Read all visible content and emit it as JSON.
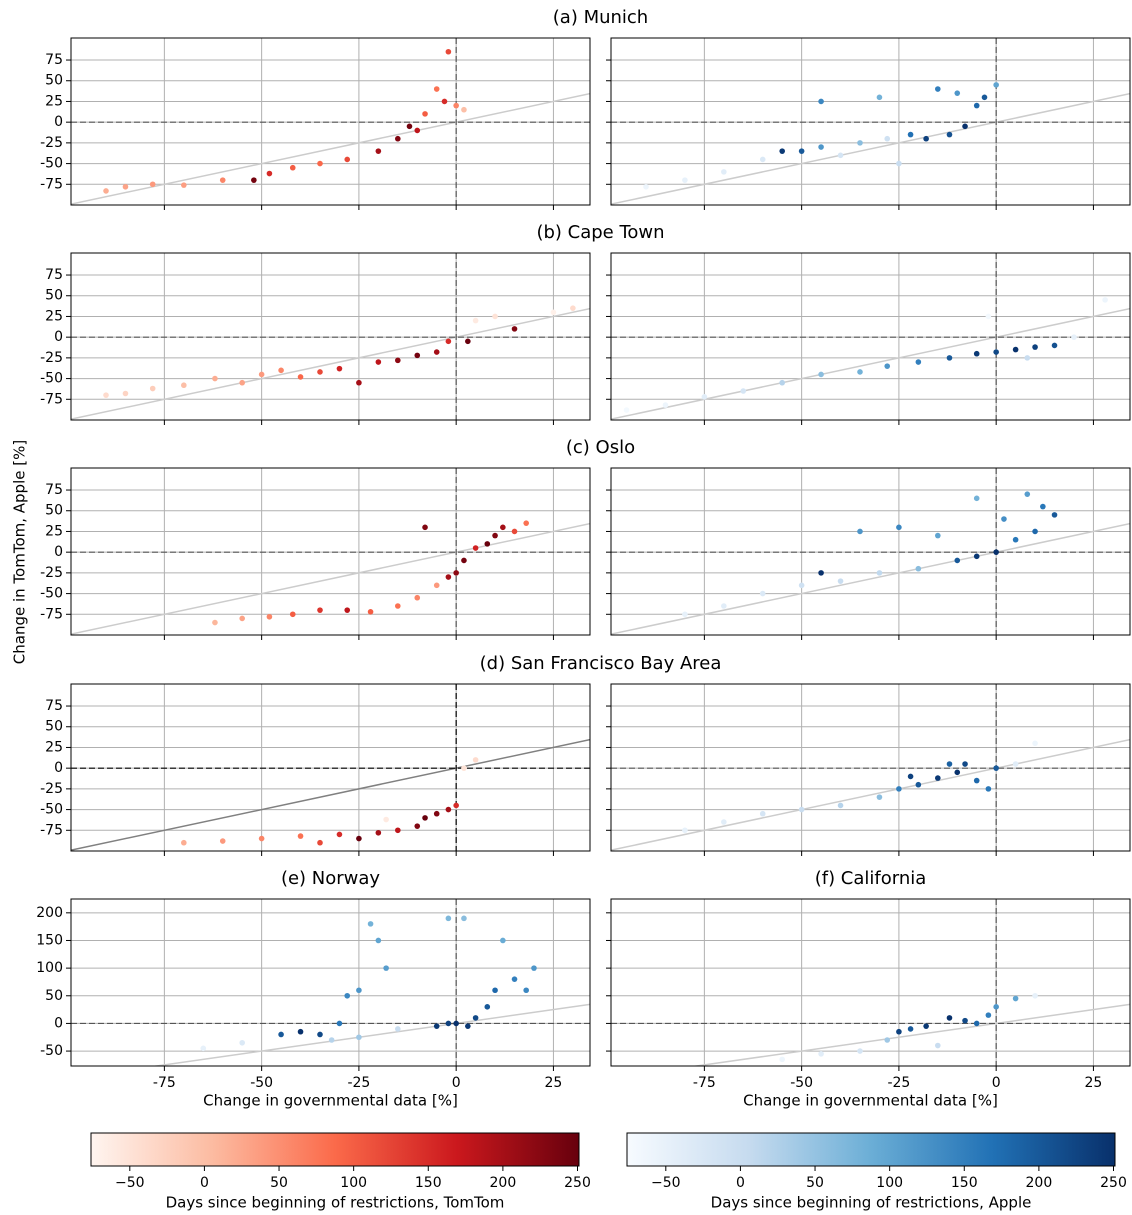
{
  "figure": {
    "ylabel": "Change in TomTom, Apple [%]"
  },
  "colorbars": [
    {
      "label": "Days since beginning of restrictions, TomTom",
      "cmap": [
        "#fff5f0",
        "#fcbba1",
        "#fb6a4a",
        "#cb181d",
        "#67000d"
      ],
      "clim": [
        -76,
        251
      ],
      "ticks": [
        {
          "value": -50,
          "label": "−50"
        },
        0,
        50,
        100,
        150,
        200,
        250
      ]
    },
    {
      "label": "Days since beginning of restrictions, Apple",
      "cmap": [
        "#f7fbff",
        "#c6dbef",
        "#6baed6",
        "#2171b5",
        "#08306b"
      ],
      "clim": [
        -76,
        251
      ],
      "ticks": [
        {
          "value": -50,
          "label": "−50"
        },
        0,
        50,
        100,
        150,
        200,
        250
      ]
    }
  ],
  "chart_data": [
    {
      "type": "scatter",
      "title": "(a) Munich",
      "cmap": [
        "#fff5f0",
        "#fcbba1",
        "#fb6a4a",
        "#cb181d",
        "#67000d"
      ],
      "clim": [
        -76,
        251
      ],
      "ref_color": "#cccccc",
      "xlim": [
        -99,
        34.4
      ],
      "ylim": [
        -100,
        101.6
      ],
      "xticks": [
        -75,
        -50,
        -25,
        0,
        25
      ],
      "yticks": [
        -75,
        -50,
        -25,
        0,
        25,
        50,
        75
      ],
      "grid": true,
      "xticklabels": false,
      "yticklabels": true,
      "x": [
        -90,
        -85,
        -78,
        -70,
        -60,
        -52,
        -48,
        -42,
        -35,
        -28,
        -20,
        -15,
        -10,
        -8,
        -5,
        -3,
        -2,
        0,
        2,
        -12
      ],
      "y": [
        -83,
        -78,
        -75,
        -76,
        -70,
        -70,
        -62,
        -55,
        -50,
        -45,
        -35,
        -20,
        -10,
        10,
        40,
        25,
        85,
        20,
        15,
        -5
      ],
      "c": [
        20,
        30,
        40,
        35,
        60,
        240,
        150,
        100,
        90,
        120,
        200,
        230,
        180,
        100,
        80,
        150,
        120,
        60,
        0,
        240
      ]
    },
    {
      "type": "scatter",
      "cmap": [
        "#f7fbff",
        "#c6dbef",
        "#6baed6",
        "#2171b5",
        "#08306b"
      ],
      "clim": [
        -76,
        251
      ],
      "ref_color": "#cccccc",
      "xlim": [
        -99,
        34.4
      ],
      "ylim": [
        -100,
        101.6
      ],
      "xticks": [
        -75,
        -50,
        -25,
        0,
        25
      ],
      "yticks": [
        -75,
        -50,
        -25,
        0,
        25,
        50,
        75
      ],
      "grid": true,
      "xticklabels": false,
      "yticklabels": false,
      "x": [
        -90,
        -80,
        -70,
        -60,
        -50,
        -45,
        -40,
        -35,
        -28,
        -22,
        -18,
        -12,
        -8,
        -5,
        -3,
        0,
        -55,
        -45,
        -30,
        -15,
        -10,
        -25
      ],
      "y": [
        -78,
        -70,
        -60,
        -45,
        -35,
        -30,
        -40,
        -25,
        -20,
        -15,
        -20,
        -15,
        -5,
        20,
        30,
        45,
        -35,
        25,
        30,
        40,
        35,
        -50
      ],
      "c": [
        -60,
        -50,
        -40,
        -30,
        200,
        120,
        -20,
        60,
        -10,
        170,
        230,
        210,
        250,
        180,
        200,
        100,
        240,
        140,
        80,
        150,
        120,
        0
      ]
    },
    {
      "type": "scatter",
      "title": "(b) Cape Town",
      "cmap": [
        "#fff5f0",
        "#fcbba1",
        "#fb6a4a",
        "#cb181d",
        "#67000d"
      ],
      "clim": [
        -76,
        251
      ],
      "ref_color": "#cccccc",
      "xlim": [
        -99,
        34.4
      ],
      "ylim": [
        -100,
        101.6
      ],
      "xticks": [
        -75,
        -50,
        -25,
        0,
        25
      ],
      "yticks": [
        -75,
        -50,
        -25,
        0,
        25,
        50,
        75
      ],
      "grid": true,
      "xticklabels": false,
      "yticklabels": true,
      "x": [
        -90,
        -85,
        -78,
        -70,
        -62,
        -55,
        -50,
        -45,
        -40,
        -35,
        -30,
        -25,
        -20,
        -15,
        -10,
        -5,
        -2,
        5,
        10,
        15,
        25,
        30,
        3
      ],
      "y": [
        -70,
        -68,
        -62,
        -58,
        -50,
        -55,
        -45,
        -40,
        -48,
        -42,
        -38,
        -55,
        -30,
        -28,
        -22,
        -18,
        -5,
        20,
        25,
        10,
        30,
        35,
        -5
      ],
      "c": [
        -40,
        -30,
        -20,
        0,
        20,
        30,
        40,
        60,
        90,
        120,
        160,
        200,
        180,
        220,
        240,
        200,
        150,
        -60,
        -50,
        230,
        -70,
        -40,
        250
      ]
    },
    {
      "type": "scatter",
      "cmap": [
        "#f7fbff",
        "#c6dbef",
        "#6baed6",
        "#2171b5",
        "#08306b"
      ],
      "clim": [
        -76,
        251
      ],
      "ref_color": "#cccccc",
      "xlim": [
        -99,
        34.4
      ],
      "ylim": [
        -100,
        101.6
      ],
      "xticks": [
        -75,
        -50,
        -25,
        0,
        25
      ],
      "yticks": [
        -75,
        -50,
        -25,
        0,
        25,
        50,
        75
      ],
      "grid": true,
      "xticklabels": false,
      "yticklabels": false,
      "x": [
        -95,
        -85,
        -75,
        -65,
        -55,
        -45,
        -35,
        -28,
        -20,
        -12,
        -5,
        0,
        5,
        10,
        15,
        20,
        28,
        -2,
        8
      ],
      "y": [
        -88,
        -82,
        -72,
        -65,
        -55,
        -45,
        -42,
        -35,
        -30,
        -25,
        -20,
        -18,
        -15,
        -12,
        -10,
        0,
        45,
        25,
        -25
      ],
      "c": [
        -70,
        -60,
        -40,
        -20,
        20,
        60,
        80,
        120,
        150,
        200,
        240,
        220,
        250,
        230,
        210,
        -50,
        -60,
        -70,
        0
      ]
    },
    {
      "type": "scatter",
      "title": "(c) Oslo",
      "cmap": [
        "#fff5f0",
        "#fcbba1",
        "#fb6a4a",
        "#cb181d",
        "#67000d"
      ],
      "clim": [
        -76,
        251
      ],
      "ref_color": "#cccccc",
      "xlim": [
        -99,
        34.4
      ],
      "ylim": [
        -100,
        101.6
      ],
      "xticks": [
        -75,
        -50,
        -25,
        0,
        25
      ],
      "yticks": [
        -75,
        -50,
        -25,
        0,
        25,
        50,
        75
      ],
      "grid": true,
      "xticklabels": false,
      "yticklabels": true,
      "x": [
        -62,
        -55,
        -48,
        -42,
        -35,
        -28,
        -22,
        -15,
        -10,
        -5,
        -2,
        0,
        2,
        5,
        8,
        10,
        12,
        15,
        18,
        -8
      ],
      "y": [
        -85,
        -80,
        -78,
        -75,
        -70,
        -70,
        -72,
        -65,
        -55,
        -40,
        -30,
        -25,
        -10,
        5,
        10,
        20,
        30,
        25,
        35,
        30
      ],
      "c": [
        10,
        30,
        60,
        100,
        140,
        180,
        100,
        80,
        60,
        40,
        200,
        220,
        240,
        160,
        250,
        230,
        200,
        120,
        80,
        230
      ]
    },
    {
      "type": "scatter",
      "cmap": [
        "#f7fbff",
        "#c6dbef",
        "#6baed6",
        "#2171b5",
        "#08306b"
      ],
      "clim": [
        -76,
        251
      ],
      "ref_color": "#cccccc",
      "xlim": [
        -99,
        34.4
      ],
      "ylim": [
        -100,
        101.6
      ],
      "xticks": [
        -75,
        -50,
        -25,
        0,
        25
      ],
      "yticks": [
        -75,
        -50,
        -25,
        0,
        25,
        50,
        75
      ],
      "grid": true,
      "xticklabels": false,
      "yticklabels": false,
      "x": [
        -80,
        -70,
        -60,
        -50,
        -40,
        -30,
        -20,
        -10,
        -5,
        0,
        5,
        10,
        15,
        -45,
        -35,
        -25,
        -15,
        -5,
        2,
        8,
        12
      ],
      "y": [
        -75,
        -65,
        -50,
        -40,
        -35,
        -25,
        -20,
        -10,
        -5,
        0,
        15,
        25,
        45,
        -25,
        25,
        30,
        20,
        65,
        40,
        70,
        55
      ],
      "c": [
        -50,
        -40,
        -30,
        -10,
        0,
        10,
        60,
        200,
        240,
        250,
        160,
        180,
        200,
        250,
        120,
        140,
        100,
        80,
        130,
        110,
        160
      ]
    },
    {
      "type": "scatter",
      "title": "(d) San Francisco Bay Area",
      "cmap": [
        "#fff5f0",
        "#fcbba1",
        "#fb6a4a",
        "#cb181d",
        "#67000d"
      ],
      "clim": [
        -76,
        251
      ],
      "ref_color": "#808080",
      "xlim": [
        -99,
        34.4
      ],
      "ylim": [
        -100,
        101.6
      ],
      "xticks": [
        -75,
        -50,
        -25,
        0,
        25
      ],
      "yticks": [
        -75,
        -50,
        -25,
        0,
        25,
        50,
        75
      ],
      "grid": true,
      "xticklabels": false,
      "yticklabels": true,
      "x": [
        -70,
        -60,
        -50,
        -40,
        -30,
        -25,
        -20,
        -15,
        -10,
        -8,
        -5,
        -2,
        0,
        2,
        5,
        -35,
        -18
      ],
      "y": [
        -90,
        -88,
        -85,
        -82,
        -80,
        -85,
        -78,
        -75,
        -70,
        -60,
        -55,
        -50,
        -45,
        0,
        10,
        -90,
        -62
      ],
      "c": [
        20,
        40,
        60,
        80,
        150,
        250,
        200,
        180,
        230,
        250,
        230,
        200,
        150,
        -50,
        -40,
        120,
        -60
      ]
    },
    {
      "type": "scatter",
      "cmap": [
        "#f7fbff",
        "#c6dbef",
        "#6baed6",
        "#2171b5",
        "#08306b"
      ],
      "clim": [
        -76,
        251
      ],
      "ref_color": "#cccccc",
      "xlim": [
        -99,
        34.4
      ],
      "ylim": [
        -100,
        101.6
      ],
      "xticks": [
        -75,
        -50,
        -25,
        0,
        25
      ],
      "yticks": [
        -75,
        -50,
        -25,
        0,
        25,
        50,
        75
      ],
      "grid": true,
      "xticklabels": false,
      "yticklabels": false,
      "x": [
        -80,
        -70,
        -60,
        -50,
        -40,
        -30,
        -25,
        -20,
        -15,
        -10,
        -8,
        -5,
        -2,
        0,
        5,
        10,
        -22,
        -12
      ],
      "y": [
        -75,
        -65,
        -55,
        -50,
        -45,
        -35,
        -25,
        -20,
        -12,
        -5,
        5,
        -15,
        -25,
        0,
        5,
        30,
        -10,
        5
      ],
      "c": [
        -50,
        -40,
        -20,
        0,
        20,
        60,
        150,
        200,
        240,
        250,
        220,
        180,
        160,
        200,
        -40,
        -60,
        230,
        190
      ]
    },
    {
      "type": "scatter",
      "title": "(e) Norway",
      "xlabel": "Change in governmental data [%]",
      "cmap": [
        "#f7fbff",
        "#c6dbef",
        "#6baed6",
        "#2171b5",
        "#08306b"
      ],
      "clim": [
        -76,
        251
      ],
      "ref_color": "#cccccc",
      "xlim": [
        -99,
        34.4
      ],
      "ylim": [
        -77,
        225
      ],
      "xticks": [
        -75,
        -50,
        -25,
        0,
        25
      ],
      "yticks": [
        -50,
        0,
        50,
        100,
        150,
        200
      ],
      "grid": true,
      "xticklabels": true,
      "yticklabels": true,
      "x": [
        -65,
        -55,
        -45,
        -40,
        -35,
        -30,
        -28,
        -25,
        -22,
        -20,
        -18,
        -15,
        -5,
        -2,
        0,
        2,
        5,
        8,
        10,
        12,
        15,
        18,
        20,
        -25,
        -32,
        -2,
        3
      ],
      "y": [
        -45,
        -35,
        -20,
        -15,
        -20,
        0,
        50,
        60,
        180,
        150,
        100,
        -10,
        -5,
        0,
        0,
        190,
        10,
        30,
        60,
        150,
        80,
        60,
        100,
        -25,
        -30,
        190,
        -5
      ],
      "c": [
        -50,
        -30,
        200,
        250,
        220,
        160,
        140,
        120,
        80,
        100,
        110,
        0,
        240,
        230,
        250,
        60,
        220,
        200,
        180,
        90,
        150,
        140,
        120,
        40,
        20,
        70,
        240
      ]
    },
    {
      "type": "scatter",
      "title": "(f) California",
      "xlabel": "Change in governmental data [%]",
      "cmap": [
        "#f7fbff",
        "#c6dbef",
        "#6baed6",
        "#2171b5",
        "#08306b"
      ],
      "clim": [
        -76,
        251
      ],
      "ref_color": "#cccccc",
      "xlim": [
        -99,
        34.4
      ],
      "ylim": [
        -77,
        225
      ],
      "xticks": [
        -75,
        -50,
        -25,
        0,
        25
      ],
      "yticks": [
        -50,
        0,
        50,
        100,
        150,
        200
      ],
      "grid": true,
      "xticklabels": true,
      "yticklabels": false,
      "x": [
        -55,
        -45,
        -35,
        -28,
        -22,
        -18,
        -12,
        -8,
        -5,
        -2,
        0,
        5,
        10,
        -15,
        -25
      ],
      "y": [
        -65,
        -55,
        -50,
        -30,
        -10,
        -5,
        10,
        5,
        0,
        15,
        30,
        45,
        50,
        -40,
        -15
      ],
      "c": [
        -60,
        -40,
        -20,
        40,
        200,
        240,
        250,
        220,
        180,
        150,
        120,
        100,
        -50,
        0,
        230
      ]
    }
  ]
}
